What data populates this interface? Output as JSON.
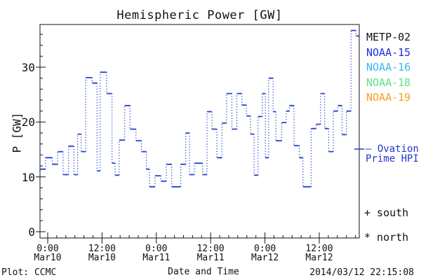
{
  "header": {
    "title": "Hemispheric Power [GW]"
  },
  "chart_data": {
    "type": "line",
    "subtype": "dotted-step",
    "title": "Hemispheric Power [GW]",
    "xlabel": "Date and Time",
    "ylabel": "P [GW]",
    "ylim": [
      0,
      37.8
    ],
    "y_major_ticks": [
      0,
      10,
      20,
      30
    ],
    "y_minor_step": 2,
    "x_range_hours": [
      -1.7,
      68.8
    ],
    "x_minor_step_hours": 2,
    "grid": false,
    "legend_position": "right",
    "x_major_ticks": [
      {
        "hours": 0,
        "time": "0:00",
        "date": "Mar10"
      },
      {
        "hours": 12,
        "time": "12:00",
        "date": "Mar10"
      },
      {
        "hours": 24,
        "time": "0:00",
        "date": "Mar11"
      },
      {
        "hours": 36,
        "time": "12:00",
        "date": "Mar11"
      },
      {
        "hours": 48,
        "time": "0:00",
        "date": "Mar12"
      },
      {
        "hours": 60,
        "time": "12:00",
        "date": "Mar12"
      }
    ],
    "series": [
      {
        "name": "Ovation Prime HPI",
        "color": "#2343cf",
        "style": "dotted-step",
        "x_hours": [
          -1.7,
          -0.5,
          1.0,
          2.2,
          3.4,
          4.6,
          5.8,
          6.6,
          7.4,
          8.4,
          9.8,
          10.9,
          11.6,
          13.0,
          14.2,
          14.9,
          15.8,
          17.0,
          18.2,
          19.5,
          20.7,
          21.8,
          22.5,
          23.7,
          25.0,
          26.2,
          27.4,
          29.4,
          30.5,
          31.3,
          32.4,
          34.2,
          35.2,
          36.3,
          37.4,
          38.5,
          39.5,
          40.7,
          41.8,
          42.9,
          43.9,
          44.8,
          45.6,
          46.5,
          47.4,
          48.1,
          48.8,
          49.8,
          50.4,
          51.7,
          52.7,
          53.4,
          54.4,
          55.6,
          56.4,
          58.2,
          59.3,
          60.3,
          61.2,
          62.1,
          63.1,
          64.1,
          65.0,
          66.0,
          67.0,
          68.1
        ],
        "values": [
          11.4,
          13.5,
          12.3,
          14.6,
          10.4,
          15.6,
          10.4,
          17.8,
          14.6,
          28.1,
          27.1,
          11.1,
          29.1,
          25.2,
          12.5,
          10.3,
          16.7,
          23.0,
          18.7,
          16.6,
          14.6,
          11.4,
          8.2,
          10.2,
          9.2,
          12.3,
          8.2,
          12.3,
          18.0,
          10.4,
          12.5,
          10.4,
          21.9,
          18.7,
          13.5,
          19.8,
          25.2,
          18.7,
          25.2,
          23.1,
          21.1,
          17.8,
          10.3,
          21.0,
          25.2,
          13.5,
          28.0,
          21.9,
          16.6,
          19.9,
          22.0,
          23.0,
          15.7,
          13.5,
          8.2,
          18.8,
          19.6,
          25.2,
          18.8,
          14.6,
          22.0,
          23.0,
          17.7,
          22.0,
          36.7,
          35.7
        ]
      }
    ]
  },
  "legend": {
    "satellites": [
      {
        "label": "METP-02",
        "color": "#111111"
      },
      {
        "label": "NOAA-15",
        "color": "#1b2fdf"
      },
      {
        "label": "NOAA-16",
        "color": "#36b8ee"
      },
      {
        "label": "NOAA-18",
        "color": "#5ce08c"
      },
      {
        "label": "NOAA-19",
        "color": "#ff9b21"
      }
    ],
    "model_line1": "— Ovation",
    "model_line2": "Prime HPI",
    "model_color": "#2336cc",
    "marker_south": "+ south",
    "marker_north": "* north"
  },
  "footer": {
    "plot_credit": "Plot: CCMC",
    "timestamp": "2014/03/12 22:15:08"
  }
}
